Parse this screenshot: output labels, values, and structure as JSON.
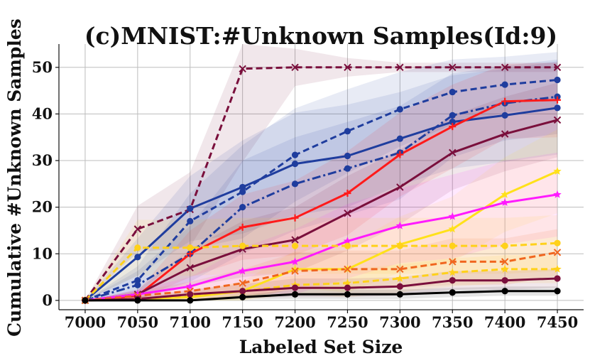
{
  "chart_data": {
    "type": "line",
    "title": "(c)MNIST:#Unknown Samples(Id:9)",
    "xlabel": "Labeled Set Size",
    "ylabel": "Cumulative #Unknown Samples",
    "x": [
      7000,
      7050,
      7100,
      7150,
      7200,
      7250,
      7300,
      7350,
      7400,
      7450
    ],
    "xlim": [
      6975,
      7475
    ],
    "ylim": [
      -2,
      55
    ],
    "yticks": [
      0,
      10,
      20,
      30,
      40,
      50
    ],
    "grid": true,
    "series": [
      {
        "color": "#7a0f3c",
        "dash": "dash",
        "marker": "x",
        "values": [
          0,
          15.3,
          19.5,
          49.7,
          50,
          50,
          50,
          50,
          50,
          50
        ],
        "band": [
          0,
          5,
          8,
          20,
          4,
          2,
          1,
          1,
          1,
          1
        ]
      },
      {
        "color": "#1f3d9e",
        "dash": "dash",
        "marker": "circle",
        "values": [
          0,
          4.3,
          17,
          23.3,
          31.2,
          36.3,
          41,
          44.7,
          46.3,
          47.3
        ],
        "band": [
          0,
          3,
          6,
          10,
          10,
          9,
          8,
          7,
          6,
          6
        ]
      },
      {
        "color": "#1f3d9e",
        "dash": "solid",
        "marker": "circle",
        "values": [
          0,
          9.3,
          19.7,
          24.3,
          29.3,
          31,
          34.7,
          38.3,
          39.7,
          41.3
        ],
        "band": [
          0,
          4,
          7,
          10,
          11,
          11,
          10,
          10,
          10,
          10
        ]
      },
      {
        "color": "#1f3d9e",
        "dash": "dashdot",
        "marker": "circle",
        "values": [
          0,
          3.3,
          10,
          20,
          25,
          28.3,
          31.7,
          39.7,
          42.3,
          43.7
        ],
        "band": [
          0,
          3,
          6,
          10,
          10,
          10,
          10,
          9,
          8,
          8
        ]
      },
      {
        "color": "#ff1a1a",
        "dash": "solid",
        "marker": "plus",
        "values": [
          0,
          1,
          10,
          15.7,
          17.7,
          23,
          31.3,
          37.3,
          42.7,
          43
        ],
        "band": [
          0,
          1,
          5,
          7,
          8,
          9,
          9,
          9,
          8,
          8
        ]
      },
      {
        "color": "#7a0f3c",
        "dash": "solid",
        "marker": "x",
        "values": [
          0,
          1.3,
          7,
          11,
          13,
          18.7,
          24.3,
          31.7,
          35.7,
          38.7
        ],
        "band": [
          0,
          1,
          4,
          6,
          7,
          8,
          8,
          8,
          8,
          8
        ]
      },
      {
        "color": "#ffe11a",
        "dash": "solid",
        "marker": "star",
        "values": [
          0,
          0.3,
          0.7,
          2,
          6.7,
          6.7,
          12,
          15.3,
          22.7,
          27.7
        ],
        "band": [
          0,
          0.5,
          1,
          2,
          4,
          5,
          6,
          7,
          8,
          9
        ]
      },
      {
        "color": "#ff1aff",
        "dash": "solid",
        "marker": "star",
        "values": [
          0,
          1.3,
          3,
          6.3,
          8.3,
          12.7,
          16,
          18,
          21,
          22.7
        ],
        "band": [
          0,
          1,
          2,
          5,
          7,
          8,
          8,
          9,
          9,
          9
        ]
      },
      {
        "color": "#ffd11a",
        "dash": "dash",
        "marker": "circle",
        "values": [
          0,
          11.3,
          11.3,
          11.7,
          11.7,
          11.7,
          11.7,
          11.7,
          11.7,
          12.3
        ],
        "band": [
          0,
          6,
          6,
          6,
          6,
          6,
          6,
          6,
          6,
          6
        ]
      },
      {
        "color": "#f0661f",
        "dash": "dash",
        "marker": "x",
        "values": [
          0,
          1,
          2,
          3.7,
          6.3,
          6.7,
          6.7,
          8.3,
          8.3,
          10.3
        ],
        "band": [
          0,
          1,
          2,
          3,
          4,
          4,
          4,
          5,
          5,
          5
        ]
      },
      {
        "color": "#ffd11a",
        "dash": "dash",
        "marker": "star",
        "values": [
          0,
          0.3,
          1,
          2,
          3.3,
          3.7,
          4.7,
          6,
          6.7,
          6.7
        ],
        "band": [
          0,
          0.5,
          1,
          2,
          2,
          3,
          3,
          3,
          3,
          3
        ]
      },
      {
        "color": "#7a0f3c",
        "dash": "solid",
        "marker": "circle",
        "values": [
          0,
          0.3,
          1.3,
          2,
          2.7,
          2.7,
          3,
          4.3,
          4.3,
          4.7
        ],
        "band": [
          0,
          0.5,
          1,
          1.5,
          2,
          2,
          2,
          2,
          2,
          2
        ]
      },
      {
        "color": "#000000",
        "dash": "solid",
        "marker": "circle",
        "values": [
          0,
          0,
          0,
          0.7,
          1.3,
          1.3,
          1.3,
          1.7,
          2,
          2
        ],
        "band": [
          0,
          0,
          0,
          0.5,
          1,
          1,
          1,
          1,
          1,
          1
        ]
      }
    ]
  }
}
